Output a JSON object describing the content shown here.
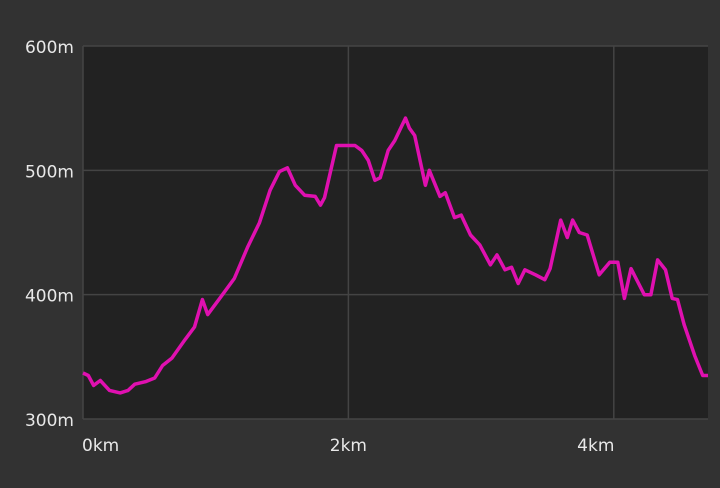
{
  "chart_data": {
    "type": "line",
    "x": [
      0,
      0.04,
      0.08,
      0.13,
      0.2,
      0.28,
      0.34,
      0.39,
      0.47,
      0.54,
      0.6,
      0.67,
      0.77,
      0.84,
      0.9,
      0.94,
      1.03,
      1.14,
      1.24,
      1.33,
      1.41,
      1.48,
      1.54,
      1.6,
      1.67,
      1.75,
      1.79,
      1.82,
      1.91,
      1.97,
      2.05,
      2.1,
      2.15,
      2.2,
      2.24,
      2.3,
      2.35,
      2.43,
      2.46,
      2.5,
      2.58,
      2.61,
      2.69,
      2.73,
      2.8,
      2.85,
      2.92,
      2.99,
      3.07,
      3.12,
      3.18,
      3.23,
      3.28,
      3.33,
      3.41,
      3.48,
      3.52,
      3.6,
      3.65,
      3.69,
      3.74,
      3.8,
      3.89,
      3.97,
      4.03,
      4.08,
      4.13,
      4.23,
      4.28,
      4.33,
      4.39,
      4.44,
      4.48,
      4.53,
      4.61,
      4.67,
      4.71
    ],
    "series": [
      {
        "color": "#e010b0",
        "values": [
          337,
          335,
          327,
          331,
          323,
          321,
          323,
          328,
          330,
          333,
          343,
          349,
          364,
          374,
          396,
          384,
          397,
          413,
          438,
          458,
          484,
          499,
          502,
          488,
          480,
          479,
          472,
          478,
          520,
          520,
          520,
          516,
          508,
          492,
          494,
          516,
          524,
          542,
          534,
          528,
          488,
          500,
          479,
          482,
          462,
          464,
          448,
          440,
          424,
          432,
          420,
          422,
          409,
          420,
          416,
          412,
          421,
          460,
          446,
          460,
          450,
          448,
          416,
          426,
          426,
          397,
          421,
          400,
          400,
          428,
          420,
          397,
          396,
          376,
          351,
          335,
          335
        ]
      }
    ],
    "xlim": [
      0,
      4.71
    ],
    "xticks": [
      {
        "value": 0,
        "label": "0km"
      },
      {
        "value": 2,
        "label": "2km"
      },
      {
        "value": 4,
        "label": "4km"
      }
    ],
    "ylim": [
      300,
      600
    ],
    "yticks": [
      {
        "value": 300,
        "label": "300m"
      },
      {
        "value": 400,
        "label": "400m"
      },
      {
        "value": 500,
        "label": "500m"
      },
      {
        "value": 600,
        "label": "600m"
      }
    ],
    "grid": true
  }
}
